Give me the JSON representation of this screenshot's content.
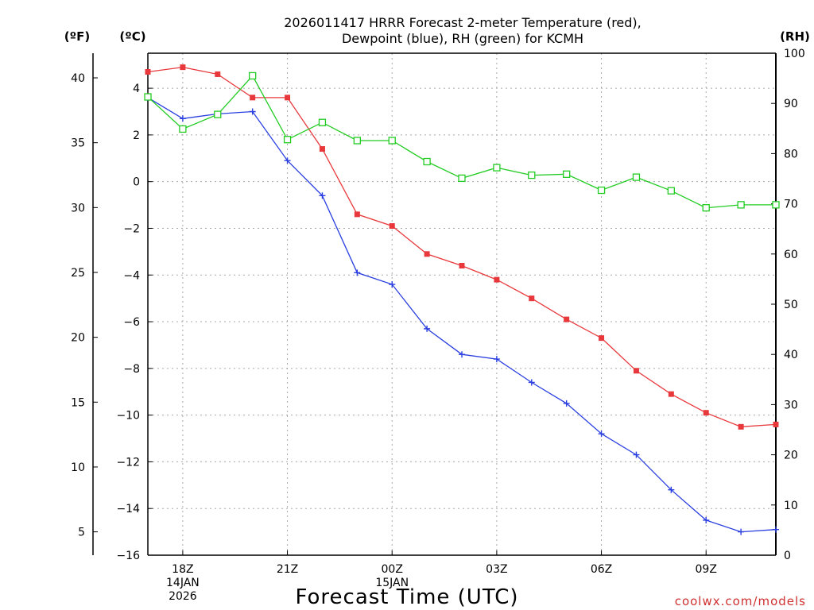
{
  "chart_data": {
    "type": "line",
    "title": [
      "2026011417 HRRR Forecast 2-meter Temperature (red),",
      "Dewpoint (blue), RH (green) for KCMH"
    ],
    "xlabel": "Forecast Time (UTC)",
    "credit": "coolwx.com/models",
    "units": {
      "fahrenheit": "(ºF)",
      "celsius": "(ºC)",
      "rh": "(RH)"
    },
    "x_hours": [
      17,
      18,
      19,
      20,
      21,
      22,
      23,
      24,
      25,
      26,
      27,
      28,
      29,
      30,
      31,
      32,
      33,
      34,
      35
    ],
    "x_ticks": [
      {
        "hour": 18,
        "lines": [
          "18Z",
          "14JAN",
          "2026"
        ]
      },
      {
        "hour": 21,
        "lines": [
          "21Z"
        ]
      },
      {
        "hour": 24,
        "lines": [
          "00Z",
          "15JAN"
        ]
      },
      {
        "hour": 27,
        "lines": [
          "03Z"
        ]
      },
      {
        "hour": 30,
        "lines": [
          "06Z"
        ]
      },
      {
        "hour": 33,
        "lines": [
          "09Z"
        ]
      }
    ],
    "xlim": [
      17,
      35
    ],
    "celsius_axis": {
      "ylim": [
        -16,
        5.5
      ],
      "ticks": [
        -16,
        -14,
        -12,
        -10,
        -8,
        -6,
        -4,
        -2,
        0,
        2,
        4
      ]
    },
    "fahrenheit_axis": {
      "ticks": [
        5,
        10,
        15,
        20,
        25,
        30,
        35,
        40
      ]
    },
    "rh_axis": {
      "ylim": [
        0,
        100
      ],
      "ticks": [
        0,
        10,
        20,
        30,
        40,
        50,
        60,
        70,
        80,
        90,
        100
      ]
    },
    "colors": {
      "temperature": "#e8383c",
      "dewpoint": "#2a3fe0",
      "rh": "#22cc22"
    },
    "series": [
      {
        "name": "2-meter Temperature",
        "axis": "celsius",
        "marker": "filled-square",
        "values": [
          4.7,
          4.9,
          4.6,
          3.6,
          3.6,
          1.4,
          -1.4,
          -1.9,
          -3.1,
          -3.6,
          -4.2,
          -5.0,
          -5.9,
          -6.7,
          -8.1,
          -9.1,
          -9.9,
          -10.5,
          -10.4
        ]
      },
      {
        "name": "Dewpoint",
        "axis": "celsius",
        "marker": "plus",
        "values": [
          3.6,
          2.7,
          2.9,
          3.0,
          0.9,
          -0.6,
          -3.9,
          -4.4,
          -6.3,
          -7.4,
          -7.6,
          -8.6,
          -9.5,
          -10.8,
          -11.7,
          -13.2,
          -14.5,
          -15.0,
          -14.9
        ]
      },
      {
        "name": "RH",
        "axis": "rh",
        "marker": "open-square",
        "values": [
          91.3,
          84.9,
          87.8,
          95.5,
          82.8,
          86.2,
          82.6,
          82.6,
          78.4,
          75.1,
          77.2,
          75.7,
          75.9,
          72.7,
          75.3,
          72.6,
          69.2,
          69.8,
          69.8
        ]
      }
    ]
  }
}
